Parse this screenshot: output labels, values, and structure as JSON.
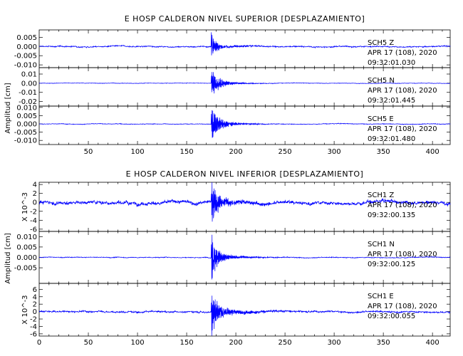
{
  "chart_data": [
    {
      "type": "line",
      "title": "E HOSP CALDERON NIVEL SUPERIOR [DESPLAZAMIENTO]",
      "ylabel": "Amplitud [cm]",
      "xlim": [
        0,
        418
      ],
      "xticks": [
        "50",
        "100",
        "150",
        "200",
        "250",
        "300",
        "350",
        "400"
      ],
      "panels": [
        {
          "station": "SCH5",
          "component": "Z",
          "date": "APR 17 (108), 2020",
          "time": "09:32:01.030",
          "ylim": [
            -0.0115,
            0.009
          ],
          "yticks": [
            "0.005",
            "0.000",
            "-0.005",
            "-0.010"
          ],
          "ytick_values": [
            0.005,
            0,
            -0.005,
            -0.01
          ],
          "ylabel": "",
          "signal": {
            "event_time": 175,
            "noise": 0.0005,
            "peak": 0.0075,
            "decay": 4,
            "coda": 0.0012,
            "coda_decay": 25
          }
        },
        {
          "station": "SCH5",
          "component": "N",
          "date": "APR 17 (108), 2020",
          "time": "09:32:01.445",
          "ylim": [
            -0.025,
            0.017
          ],
          "yticks": [
            "0.01",
            "0.00",
            "-0.01",
            "-0.02"
          ],
          "ytick_values": [
            0.01,
            0,
            -0.01,
            -0.02
          ],
          "ylabel": "",
          "signal": {
            "event_time": 175,
            "noise": 0.0004,
            "peak": 0.015,
            "decay": 6,
            "coda": 0.004,
            "coda_decay": 20
          }
        },
        {
          "station": "SCH5",
          "component": "E",
          "date": "APR 17 (108), 2020",
          "time": "09:32:01.480",
          "ylim": [
            -0.0125,
            0.0108
          ],
          "yticks": [
            "0.010",
            "0.005",
            "0.000",
            "-0.005",
            "-0.010"
          ],
          "ytick_values": [
            0.01,
            0.005,
            0,
            -0.005,
            -0.01
          ],
          "ylabel": "",
          "signal": {
            "event_time": 175,
            "noise": 0.0003,
            "peak": 0.0095,
            "decay": 6,
            "coda": 0.003,
            "coda_decay": 20
          }
        }
      ]
    },
    {
      "type": "line",
      "title": "E HOSP CALDERON NIVEL INFERIOR [DESPLAZAMIENTO]",
      "ylabel": "Amplitud [cm]",
      "xlim": [
        0,
        418
      ],
      "xticks": [
        "0",
        "50",
        "100",
        "150",
        "200",
        "250",
        "300",
        "350",
        "400"
      ],
      "panels": [
        {
          "station": "SCH1",
          "component": "Z",
          "date": "APR 17 (108), 2020",
          "time": "09:32:00.135",
          "ylim": [
            -6.5,
            4.5
          ],
          "yticks": [
            "4",
            "2",
            "0",
            "-2",
            "-4",
            "-6"
          ],
          "ytick_values": [
            4,
            2,
            0,
            -2,
            -4,
            -6
          ],
          "ylabel": "X 10^-3",
          "signal": {
            "event_time": 175,
            "noise": 0.6,
            "peak": 5.5,
            "decay": 4,
            "coda": 1.5,
            "coda_decay": 25
          }
        },
        {
          "station": "SCH1",
          "component": "N",
          "date": "APR 17 (108), 2020",
          "time": "09:32:00.125",
          "ylim": [
            -0.0125,
            0.0125
          ],
          "yticks": [
            "0.010",
            "0.005",
            "0.000",
            "-0.005"
          ],
          "ytick_values": [
            0.01,
            0.005,
            0,
            -0.005
          ],
          "ylabel": "",
          "signal": {
            "event_time": 175,
            "noise": 0.0003,
            "peak": 0.011,
            "decay": 5,
            "coda": 0.002,
            "coda_decay": 25
          }
        },
        {
          "station": "SCH1",
          "component": "E",
          "date": "APR 17 (108), 2020",
          "time": "09:32:00.055",
          "ylim": [
            -6.6,
            7.6
          ],
          "yticks": [
            "6",
            "4",
            "2",
            "0",
            "-2",
            "-4",
            "-6"
          ],
          "ytick_values": [
            6,
            4,
            2,
            0,
            -2,
            -4,
            -6
          ],
          "ylabel": "X 10^-3",
          "signal": {
            "event_time": 175,
            "noise": 0.35,
            "peak": 6.5,
            "decay": 5,
            "coda": 1.5,
            "coda_decay": 30
          }
        }
      ]
    }
  ],
  "style": {
    "trace_color": "#0000ff",
    "axis_color": "#000000",
    "label_color": "#000000"
  }
}
